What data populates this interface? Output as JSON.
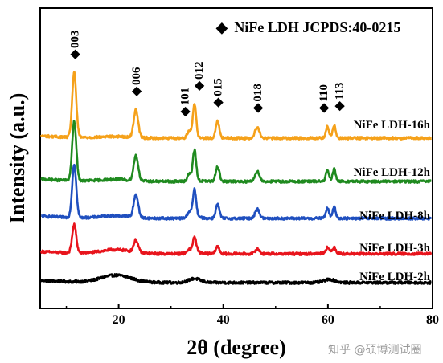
{
  "chart_data": {
    "type": "line",
    "xlabel": "2θ (degree)",
    "ylabel": "Intensity (a.u.)",
    "xlim": [
      5,
      80
    ],
    "xticks": [
      20,
      40,
      60,
      80
    ],
    "legend": {
      "symbol": "◆",
      "text": "NiFe LDH JCPDS:40-0215",
      "placement": "top-right"
    },
    "peaks": [
      {
        "label": "003",
        "x": 11.5
      },
      {
        "label": "006",
        "x": 23.3
      },
      {
        "label": "101",
        "x": 33.5
      },
      {
        "label": "012",
        "x": 34.5
      },
      {
        "label": "015",
        "x": 38.9
      },
      {
        "label": "018",
        "x": 46.5
      },
      {
        "label": "110",
        "x": 59.9
      },
      {
        "label": "113",
        "x": 61.2
      }
    ],
    "series": [
      {
        "name": "NiFe LDH-2h",
        "color": "#000000",
        "offset": 0.0,
        "gain": 0.0,
        "amorphous": 1.0
      },
      {
        "name": "NiFe LDH-3h",
        "color": "#e8141c",
        "offset": 1.0,
        "gain": 0.5,
        "amorphous": 0.55
      },
      {
        "name": "NiFe LDH-8h",
        "color": "#1f4fbf",
        "offset": 2.0,
        "gain": 0.95,
        "amorphous": 0.35
      },
      {
        "name": "NiFe LDH-12h",
        "color": "#1f8a1f",
        "offset": 3.0,
        "gain": 1.05,
        "amorphous": 0.25
      },
      {
        "name": "NiFe LDH-16h",
        "color": "#f5a11a",
        "offset": 4.0,
        "gain": 1.15,
        "amorphous": 0.2
      }
    ]
  },
  "watermark": "知乎 @硕博测试圈"
}
